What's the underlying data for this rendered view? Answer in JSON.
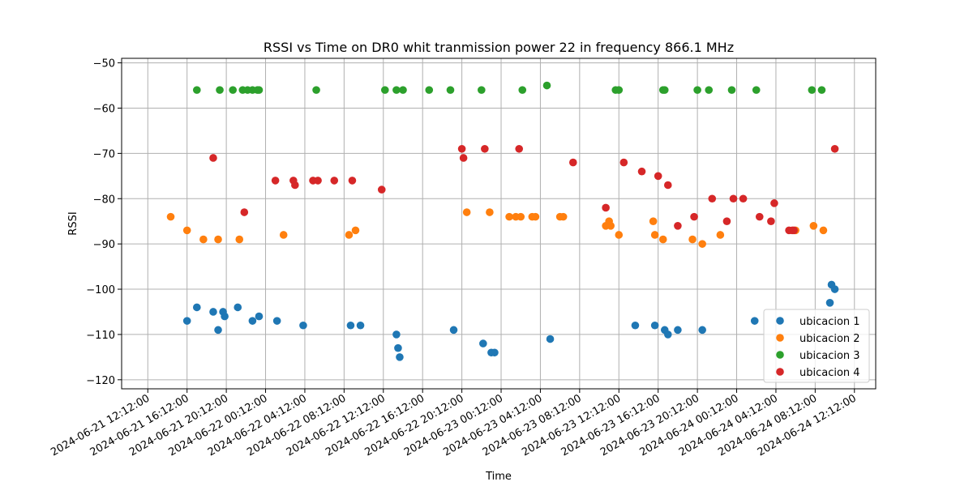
{
  "chart_data": {
    "type": "scatter",
    "title": "RSSI vs Time on DR0  whit tranmission power 22 in frequency 866.1 MHz",
    "xlabel": "Time",
    "ylabel": "RSSI",
    "xlim": [
      "2024-06-21 09:32",
      "2024-06-24 14:22"
    ],
    "ylim": [
      -122,
      -49
    ],
    "x_ticks": [
      "2024-06-21 12:12:00",
      "2024-06-21 16:12:00",
      "2024-06-21 20:12:00",
      "2024-06-22 00:12:00",
      "2024-06-22 04:12:00",
      "2024-06-22 08:12:00",
      "2024-06-22 12:12:00",
      "2024-06-22 16:12:00",
      "2024-06-22 20:12:00",
      "2024-06-23 00:12:00",
      "2024-06-23 04:12:00",
      "2024-06-23 08:12:00",
      "2024-06-23 12:12:00",
      "2024-06-23 16:12:00",
      "2024-06-23 20:12:00",
      "2024-06-24 00:12:00",
      "2024-06-24 04:12:00",
      "2024-06-24 08:12:00",
      "2024-06-24 12:12:00"
    ],
    "y_ticks": [
      -120,
      -110,
      -100,
      -90,
      -80,
      -70,
      -60,
      -50
    ],
    "grid": true,
    "legend_position": "lower-right",
    "series": [
      {
        "name": "ubicacion 1",
        "color": "#1f77b4",
        "points": [
          [
            "2024-06-21 16:12",
            -107
          ],
          [
            "2024-06-21 17:12",
            -104
          ],
          [
            "2024-06-21 18:52",
            -105
          ],
          [
            "2024-06-21 19:22",
            -109
          ],
          [
            "2024-06-21 19:52",
            -105
          ],
          [
            "2024-06-21 20:02",
            -106
          ],
          [
            "2024-06-21 21:22",
            -104
          ],
          [
            "2024-06-21 22:52",
            -107
          ],
          [
            "2024-06-21 23:32",
            -106
          ],
          [
            "2024-06-22 01:22",
            -107
          ],
          [
            "2024-06-22 04:02",
            -108
          ],
          [
            "2024-06-22 08:52",
            -108
          ],
          [
            "2024-06-22 09:52",
            -108
          ],
          [
            "2024-06-22 13:32",
            -110
          ],
          [
            "2024-06-22 13:42",
            -113
          ],
          [
            "2024-06-22 13:52",
            -115
          ],
          [
            "2024-06-22 19:22",
            -109
          ],
          [
            "2024-06-22 22:22",
            -112
          ],
          [
            "2024-06-22 23:12",
            -114
          ],
          [
            "2024-06-22 23:32",
            -114
          ],
          [
            "2024-06-23 05:12",
            -111
          ],
          [
            "2024-06-23 13:52",
            -108
          ],
          [
            "2024-06-23 15:52",
            -108
          ],
          [
            "2024-06-23 16:52",
            -109
          ],
          [
            "2024-06-23 17:12",
            -110
          ],
          [
            "2024-06-23 18:12",
            -109
          ],
          [
            "2024-06-23 20:42",
            -109
          ],
          [
            "2024-06-24 02:02",
            -107
          ],
          [
            "2024-06-24 09:42",
            -103
          ],
          [
            "2024-06-24 09:52",
            -99
          ],
          [
            "2024-06-24 10:12",
            -100
          ]
        ]
      },
      {
        "name": "ubicacion 2",
        "color": "#ff7f0e",
        "points": [
          [
            "2024-06-21 14:32",
            -84
          ],
          [
            "2024-06-21 16:12",
            -87
          ],
          [
            "2024-06-21 17:52",
            -89
          ],
          [
            "2024-06-21 19:22",
            -89
          ],
          [
            "2024-06-21 21:32",
            -89
          ],
          [
            "2024-06-22 02:02",
            -88
          ],
          [
            "2024-06-22 08:42",
            -88
          ],
          [
            "2024-06-22 09:22",
            -87
          ],
          [
            "2024-06-22 20:42",
            -83
          ],
          [
            "2024-06-22 23:02",
            -83
          ],
          [
            "2024-06-23 01:02",
            -84
          ],
          [
            "2024-06-23 01:42",
            -84
          ],
          [
            "2024-06-23 02:12",
            -84
          ],
          [
            "2024-06-23 03:22",
            -84
          ],
          [
            "2024-06-23 03:42",
            -84
          ],
          [
            "2024-06-23 06:12",
            -84
          ],
          [
            "2024-06-23 06:32",
            -84
          ],
          [
            "2024-06-23 10:52",
            -86
          ],
          [
            "2024-06-23 11:12",
            -85
          ],
          [
            "2024-06-23 11:22",
            -86
          ],
          [
            "2024-06-23 12:12",
            -88
          ],
          [
            "2024-06-23 15:42",
            -85
          ],
          [
            "2024-06-23 15:52",
            -88
          ],
          [
            "2024-06-23 16:42",
            -89
          ],
          [
            "2024-06-23 19:42",
            -89
          ],
          [
            "2024-06-23 20:42",
            -90
          ],
          [
            "2024-06-23 22:32",
            -88
          ],
          [
            "2024-06-24 06:12",
            -87
          ],
          [
            "2024-06-24 08:02",
            -86
          ],
          [
            "2024-06-24 09:02",
            -87
          ]
        ]
      },
      {
        "name": "ubicacion 3",
        "color": "#2ca02c",
        "points": [
          [
            "2024-06-21 17:12",
            -56
          ],
          [
            "2024-06-21 19:32",
            -56
          ],
          [
            "2024-06-21 20:52",
            -56
          ],
          [
            "2024-06-21 21:52",
            -56
          ],
          [
            "2024-06-21 22:22",
            -56
          ],
          [
            "2024-06-21 22:52",
            -56
          ],
          [
            "2024-06-21 23:22",
            -56
          ],
          [
            "2024-06-21 23:32",
            -56
          ],
          [
            "2024-06-22 05:22",
            -56
          ],
          [
            "2024-06-22 12:22",
            -56
          ],
          [
            "2024-06-22 13:32",
            -56
          ],
          [
            "2024-06-22 14:12",
            -56
          ],
          [
            "2024-06-22 16:52",
            -56
          ],
          [
            "2024-06-22 19:02",
            -56
          ],
          [
            "2024-06-22 22:12",
            -56
          ],
          [
            "2024-06-23 02:22",
            -56
          ],
          [
            "2024-06-23 04:52",
            -55
          ],
          [
            "2024-06-23 11:52",
            -56
          ],
          [
            "2024-06-23 12:12",
            -56
          ],
          [
            "2024-06-23 16:42",
            -56
          ],
          [
            "2024-06-23 16:52",
            -56
          ],
          [
            "2024-06-23 20:12",
            -56
          ],
          [
            "2024-06-23 21:22",
            -56
          ],
          [
            "2024-06-23 23:42",
            -56
          ],
          [
            "2024-06-24 02:12",
            -56
          ],
          [
            "2024-06-24 07:52",
            -56
          ],
          [
            "2024-06-24 08:52",
            -56
          ]
        ]
      },
      {
        "name": "ubicacion 4",
        "color": "#d62728",
        "points": [
          [
            "2024-06-21 18:52",
            -71
          ],
          [
            "2024-06-21 22:02",
            -83
          ],
          [
            "2024-06-22 01:12",
            -76
          ],
          [
            "2024-06-22 03:02",
            -76
          ],
          [
            "2024-06-22 03:12",
            -77
          ],
          [
            "2024-06-22 05:02",
            -76
          ],
          [
            "2024-06-22 05:32",
            -76
          ],
          [
            "2024-06-22 07:12",
            -76
          ],
          [
            "2024-06-22 09:02",
            -76
          ],
          [
            "2024-06-22 12:02",
            -78
          ],
          [
            "2024-06-22 20:12",
            -69
          ],
          [
            "2024-06-22 20:22",
            -71
          ],
          [
            "2024-06-22 22:32",
            -69
          ],
          [
            "2024-06-23 02:02",
            -69
          ],
          [
            "2024-06-23 07:32",
            -72
          ],
          [
            "2024-06-23 10:52",
            -82
          ],
          [
            "2024-06-23 12:42",
            -72
          ],
          [
            "2024-06-23 14:32",
            -74
          ],
          [
            "2024-06-23 16:12",
            -75
          ],
          [
            "2024-06-23 17:12",
            -77
          ],
          [
            "2024-06-23 18:12",
            -86
          ],
          [
            "2024-06-23 19:52",
            -84
          ],
          [
            "2024-06-23 21:42",
            -80
          ],
          [
            "2024-06-23 23:12",
            -85
          ],
          [
            "2024-06-23 23:52",
            -80
          ],
          [
            "2024-06-24 00:52",
            -80
          ],
          [
            "2024-06-24 02:32",
            -84
          ],
          [
            "2024-06-24 03:42",
            -85
          ],
          [
            "2024-06-24 04:02",
            -81
          ],
          [
            "2024-06-24 05:32",
            -87
          ],
          [
            "2024-06-24 05:52",
            -87
          ],
          [
            "2024-06-24 06:02",
            -87
          ],
          [
            "2024-06-24 10:12",
            -69
          ]
        ]
      }
    ]
  }
}
